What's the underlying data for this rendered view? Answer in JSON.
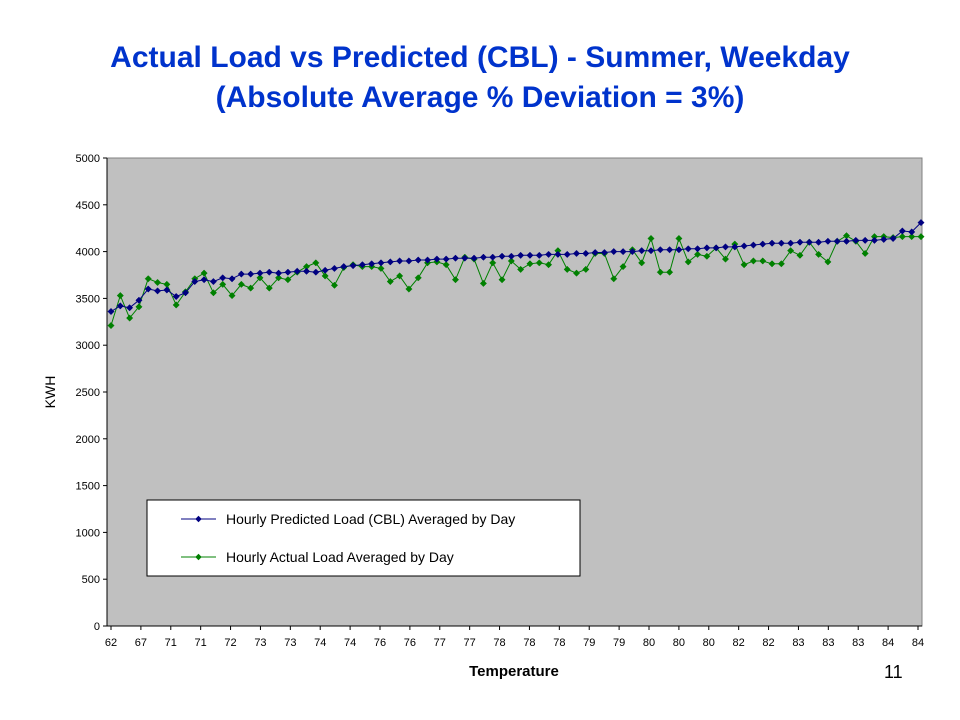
{
  "slide": {
    "title_line1": "Actual Load vs Predicted (CBL) - Summer, Weekday",
    "title_line2": "(Absolute Average % Deviation = 3%)",
    "page_number": "11"
  },
  "colors": {
    "title": "#0033cc",
    "plot_background": "#c0c0c0",
    "predicted_series": "#000080",
    "actual_series": "#008000"
  },
  "chart_data": {
    "type": "line",
    "title": "",
    "xlabel": "Temperature",
    "ylabel": "KWH",
    "ylim": [
      0,
      5000
    ],
    "yticks": [
      0,
      500,
      1000,
      1500,
      2000,
      2500,
      3000,
      3500,
      4000,
      4500,
      5000
    ],
    "xtick_labels": [
      "62",
      "67",
      "71",
      "71",
      "72",
      "73",
      "73",
      "74",
      "74",
      "76",
      "76",
      "77",
      "77",
      "78",
      "78",
      "78",
      "79",
      "79",
      "80",
      "80",
      "80",
      "82",
      "82",
      "83",
      "83",
      "83",
      "84",
      "84"
    ],
    "grid": false,
    "legend_position": "lower-left",
    "x_points": 88,
    "series": [
      {
        "name": "Hourly Predicted Load (CBL) Averaged by Day",
        "marker": "diamond",
        "values": [
          3360,
          3420,
          3400,
          3480,
          3600,
          3580,
          3590,
          3520,
          3560,
          3680,
          3700,
          3680,
          3720,
          3710,
          3760,
          3760,
          3770,
          3780,
          3770,
          3780,
          3790,
          3790,
          3780,
          3800,
          3820,
          3840,
          3850,
          3860,
          3870,
          3880,
          3890,
          3900,
          3900,
          3910,
          3910,
          3920,
          3920,
          3930,
          3930,
          3930,
          3940,
          3940,
          3950,
          3950,
          3960,
          3960,
          3960,
          3970,
          3970,
          3970,
          3980,
          3980,
          3990,
          3990,
          4000,
          4000,
          4000,
          4010,
          4010,
          4020,
          4020,
          4020,
          4030,
          4030,
          4040,
          4040,
          4050,
          4050,
          4060,
          4070,
          4080,
          4090,
          4090,
          4090,
          4100,
          4100,
          4100,
          4110,
          4110,
          4110,
          4120,
          4120,
          4120,
          4130,
          4140,
          4220,
          4210,
          4310
        ]
      },
      {
        "name": "Hourly Actual Load Averaged by Day",
        "marker": "diamond",
        "values": [
          3210,
          3530,
          3290,
          3410,
          3710,
          3670,
          3650,
          3430,
          3570,
          3710,
          3770,
          3560,
          3650,
          3530,
          3650,
          3610,
          3720,
          3610,
          3720,
          3700,
          3780,
          3840,
          3880,
          3740,
          3640,
          3830,
          3860,
          3840,
          3840,
          3820,
          3680,
          3740,
          3600,
          3720,
          3880,
          3890,
          3860,
          3700,
          3940,
          3920,
          3660,
          3880,
          3700,
          3900,
          3810,
          3870,
          3880,
          3860,
          4010,
          3810,
          3770,
          3810,
          3980,
          3980,
          3710,
          3840,
          4020,
          3880,
          4140,
          3780,
          3780,
          4140,
          3890,
          3970,
          3950,
          4040,
          3920,
          4080,
          3860,
          3900,
          3900,
          3870,
          3870,
          4010,
          3960,
          4100,
          3970,
          3890,
          4110,
          4170,
          4110,
          3980,
          4160,
          4160,
          4150,
          4160,
          4160,
          4160
        ]
      }
    ]
  }
}
